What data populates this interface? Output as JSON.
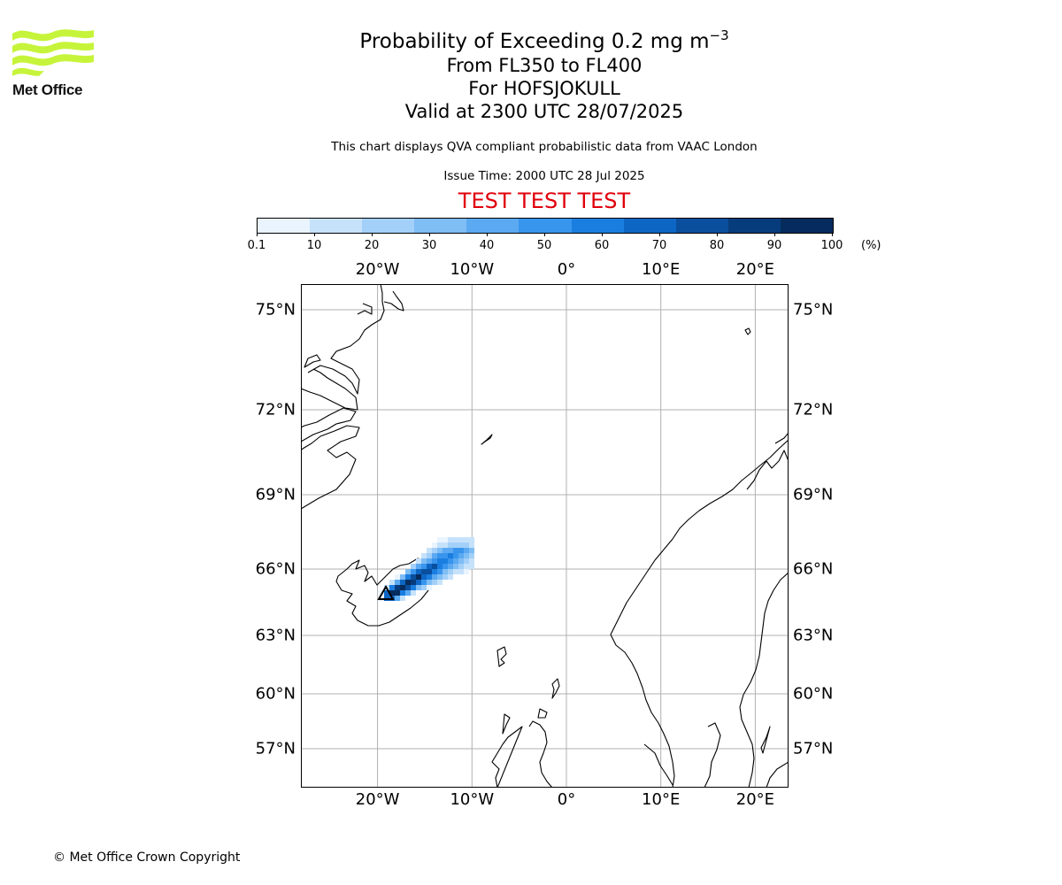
{
  "logo": {
    "text": "Met Office",
    "color": "#c6f43a"
  },
  "title": {
    "line1_prefix": "Probability of Exceeding 0.2 mg m",
    "line1_superscript": "−3",
    "line2": "From FL350 to FL400",
    "line3": "For HOFSJOKULL",
    "line4": "Valid at 2300 UTC 28/07/2025"
  },
  "subtitle": "This chart displays QVA compliant probabilistic data from VAAC London",
  "issue_time": "Issue Time: 2000 UTC 28 Jul 2025",
  "test_banner": "TEST TEST TEST",
  "colorbar": {
    "ticks": [
      "0.1",
      "10",
      "20",
      "30",
      "40",
      "50",
      "60",
      "70",
      "80",
      "90",
      "100"
    ],
    "unit": "(%)",
    "colors": [
      "#eaf4fe",
      "#c6e2fb",
      "#a3d0f8",
      "#7fbdf5",
      "#5ba9f1",
      "#3895ed",
      "#1a7ee0",
      "#0e66c4",
      "#0a4f9e",
      "#073c7c",
      "#052c5c"
    ]
  },
  "map": {
    "lon_labels": [
      "20°W",
      "10°W",
      "0°",
      "10°E",
      "20°E"
    ],
    "lat_labels": [
      "75°N",
      "72°N",
      "69°N",
      "66°N",
      "63°N",
      "60°N",
      "57°N"
    ],
    "lon_values": [
      -20,
      -10,
      0,
      10,
      20
    ],
    "lat_values": [
      75,
      72,
      69,
      66,
      63,
      60,
      57
    ],
    "volcano": "HOFSJOKULL"
  },
  "copyright": "© Met Office Crown Copyright"
}
